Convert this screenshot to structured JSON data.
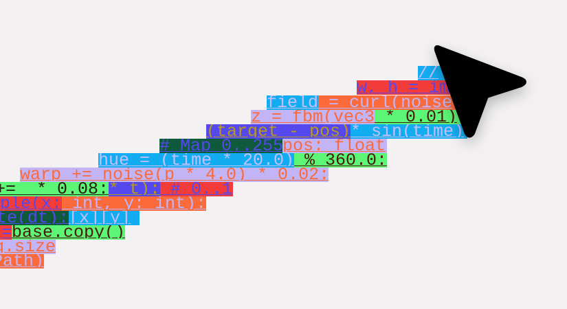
{
  "colors": {
    "background": "#f3f1f2",
    "blue": "#12adf0",
    "red": "#f23c3c",
    "orange": "#fb6a3a",
    "lavender": "#c2b4f5",
    "green": "#5cf575",
    "indigo": "#5548ec",
    "dark_green": "#0f5a3c",
    "cursor": "#000000"
  },
  "code_segments": [
    {
      "text": "//",
      "bg": "blue"
    },
    {
      "text": "w, h = im",
      "bg": "red"
    },
    {
      "text": "field",
      "bg": "blue"
    },
    {
      "text": " = curl(noise",
      "bg": "orange"
    },
    {
      "text": "z = fbm(vec3",
      "bg": "lavender"
    },
    {
      "text": " * 0.01)",
      "bg": "green"
    },
    {
      "text": "(target - pos)",
      "bg": "indigo"
    },
    {
      "text": "* sin(time)",
      "bg": "blue"
    },
    {
      "text": "# Map 0..255",
      "bg": "dark_green"
    },
    {
      "text": "pos: float",
      "bg": "lavender"
    },
    {
      "text": "hue = (time * 20.0)",
      "bg": "blue"
    },
    {
      "text": " % 360.0:",
      "bg": "green"
    },
    {
      "text": "warp += noise(p * 4.0) * 0.02:",
      "bg": "lavender"
    },
    {
      "text": "+=  * 0.08:",
      "bg": "green"
    },
    {
      "text": "* t):",
      "bg": "indigo"
    },
    {
      "text": " # 0..1",
      "bg": "red"
    },
    {
      "text": "ple(x:",
      "bg": "red"
    },
    {
      "text": " int, y: int):",
      "bg": "orange"
    },
    {
      "text": "te(dt):",
      "bg": "dark_green"
    },
    {
      "text": "[x][y]",
      "bg": "blue"
    },
    {
      "text": "=",
      "bg": "red"
    },
    {
      "text": "base.copy()",
      "bg": "green"
    },
    {
      "text": "g.size",
      "bg": "lavender"
    },
    {
      "text": "Path)",
      "bg": "orange"
    }
  ],
  "cursor_icon": "arrow-pointer-icon"
}
